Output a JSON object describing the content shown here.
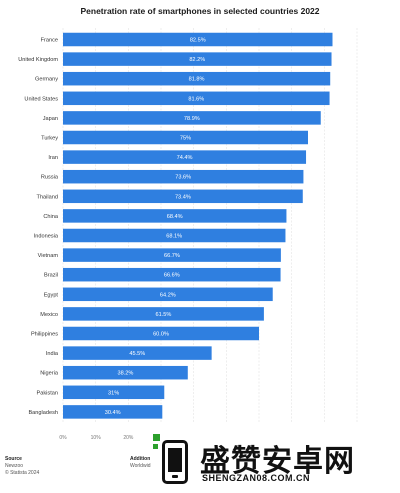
{
  "chart_data": {
    "type": "bar",
    "orientation": "horizontal",
    "title": "Penetration rate of smartphones in selected countries 2022",
    "categories": [
      "France",
      "United Kingdom",
      "Germany",
      "United States",
      "Japan",
      "Turkey",
      "Iran",
      "Russia",
      "Thailand",
      "China",
      "Indonesia",
      "Vietnam",
      "Brazil",
      "Egypt",
      "Mexico",
      "Philippines",
      "India",
      "Nigeria",
      "Pakistan",
      "Bangladesh"
    ],
    "values": [
      82.5,
      82.2,
      81.8,
      81.6,
      78.9,
      75,
      74.4,
      73.6,
      73.4,
      68.4,
      68.1,
      66.7,
      66.6,
      64.2,
      61.5,
      60.0,
      45.5,
      38.2,
      31.0,
      30.4
    ],
    "value_labels": [
      "82.5%",
      "82.2%",
      "81.8%",
      "81.6%",
      "78.9%",
      "75%",
      "74.4%",
      "73.6%",
      "73.4%",
      "68.4%",
      "68.1%",
      "66.7%",
      "66.6%",
      "64.2%",
      "61.5%",
      "60.0%",
      "45.5%",
      "38.2%",
      "31%",
      "30.4%"
    ],
    "xticks": [
      "0%",
      "10%",
      "20%"
    ],
    "xlim": [
      0,
      90
    ],
    "grid": true,
    "bar_color": "#2f7fe0"
  },
  "footer": {
    "source_heading": "Source",
    "source_line1": "Newzoo",
    "source_line2": "© Statista 2024",
    "additional_heading": "Addition",
    "additional_line1": "Worldwid"
  },
  "watermark": {
    "text": "盛赞安卓网",
    "url": "SHENGZAN08.COM.CN"
  }
}
